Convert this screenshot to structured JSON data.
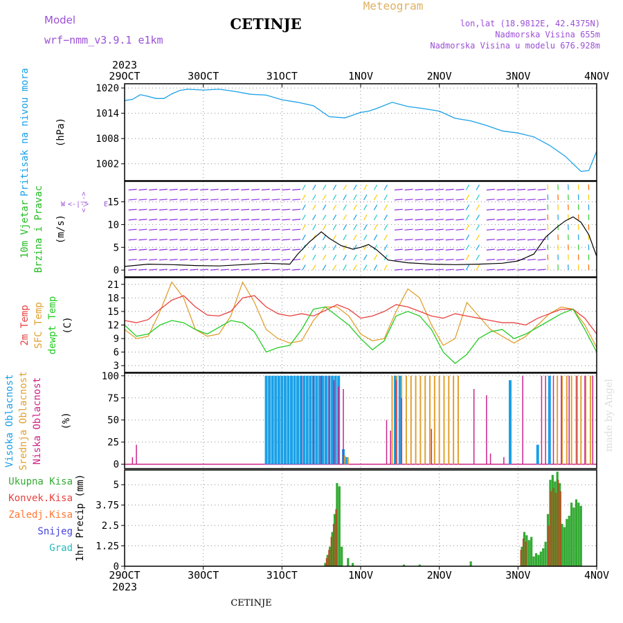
{
  "header": {
    "model_label": "Model",
    "model_name": "wrf−nmm_v3.9.1  e1km",
    "station": "CETINJE",
    "meteogram_label": "Meteogram",
    "lonlat": "lon,lat (18.9812E, 42.4375N)",
    "altitude": "Nadmorska Visina 655m",
    "model_altitude": "Nadmorska Visina u modelu 676.928m",
    "year": "2023",
    "footer_station": "CETINJE",
    "watermark": "made by Angel"
  },
  "colors": {
    "pressure": "#1aa0e6",
    "wind_title": "#22bb22",
    "wind_units": "#000000",
    "wind_arrows": "#8a2be2",
    "t2m": "#e84040",
    "sfc": "#e0a030",
    "dewpt": "#22cc22",
    "high_cloud": "#1aa0e6",
    "mid_cloud": "#e0a030",
    "low_cloud": "#cc2288",
    "total_precip": "#33aa33",
    "convective": "#e84040",
    "frozen": "#ff7733",
    "snow": "#4444dd",
    "hail": "#22bbbb",
    "title_purple": "#9b4fd6",
    "meteogram_orange": "#e0b060"
  },
  "chart_data": [
    {
      "type": "line",
      "title": "",
      "ylabel": "Pritisak na nivou mora",
      "yunit": "(hPa)",
      "yticks": [
        1002,
        1008,
        1014,
        1020
      ],
      "ylim": [
        998,
        1021
      ],
      "x_start": "29OCT 2023",
      "x_ticks": [
        "29OCT",
        "30OCT",
        "31OCT",
        "1NOV",
        "2NOV",
        "3NOV",
        "4NOV"
      ],
      "series": [
        {
          "name": "",
          "x": [
            0,
            0.1,
            0.2,
            0.3,
            0.4,
            0.5,
            0.6,
            0.7,
            0.8,
            0.9,
            1.0,
            1.2,
            1.4,
            1.6,
            1.8,
            2.0,
            2.2,
            2.4,
            2.6,
            2.8,
            3.0,
            3.1,
            3.2,
            3.4,
            3.6,
            3.8,
            4.0,
            4.2,
            4.4,
            4.6,
            4.8,
            5.0,
            5.2,
            5.4,
            5.6,
            5.7,
            5.8,
            5.9,
            6.0
          ],
          "y": [
            1017,
            1017.3,
            1018.4,
            1018,
            1017.5,
            1017.5,
            1018.6,
            1019.4,
            1019.7,
            1019.6,
            1019.5,
            1019.7,
            1019.2,
            1018.5,
            1018.3,
            1017.2,
            1016.6,
            1015.8,
            1013.2,
            1012.9,
            1014.2,
            1014.5,
            1015.1,
            1016.6,
            1015.6,
            1015.1,
            1014.5,
            1012.8,
            1012.2,
            1011.1,
            1009.8,
            1009.3,
            1008.4,
            1006.4,
            1003.8,
            1002,
            1000.2,
            1000.4,
            1005
          ]
        }
      ]
    },
    {
      "type": "line",
      "title": "",
      "ylabel": "10m Vjetar Brzina i Pravac",
      "yunit": "(m/s)",
      "yticks": [
        0,
        5,
        10,
        15
      ],
      "ylim": [
        -1.5,
        19.5
      ],
      "compass": "N / W <-|-> E / S",
      "series": [
        {
          "name": "",
          "x": [
            0,
            0.3,
            0.6,
            0.9,
            1.2,
            1.5,
            1.8,
            2.1,
            2.2,
            2.35,
            2.5,
            2.6,
            2.75,
            2.9,
            3.0,
            3.1,
            3.2,
            3.35,
            3.6,
            3.9,
            4.2,
            4.5,
            4.8,
            5.0,
            5.2,
            5.35,
            5.5,
            5.6,
            5.7,
            5.8,
            5.9,
            6.0
          ],
          "y": [
            0.8,
            1.3,
            1.2,
            1,
            0.9,
            1.2,
            1.5,
            1.3,
            3.5,
            6.2,
            8.4,
            7,
            5.4,
            4.6,
            5,
            5.6,
            4.5,
            2.2,
            1.6,
            1.3,
            1.2,
            1.3,
            1.5,
            2,
            3.5,
            7.2,
            9.5,
            10.8,
            11.7,
            10.5,
            7.8,
            3
          ]
        }
      ]
    },
    {
      "type": "line",
      "title": "",
      "ylabel": "2m Temp / SFC Temp / dewpt Temp",
      "yunit": "(C)",
      "yticks": [
        3,
        6,
        9,
        12,
        15,
        18,
        21
      ],
      "ylim": [
        1.5,
        22.5
      ],
      "series": [
        {
          "name": "2m Temp",
          "x": [
            0,
            0.15,
            0.3,
            0.45,
            0.6,
            0.75,
            0.9,
            1.05,
            1.2,
            1.35,
            1.5,
            1.65,
            1.8,
            1.95,
            2.1,
            2.25,
            2.4,
            2.55,
            2.7,
            2.85,
            3.0,
            3.15,
            3.3,
            3.45,
            3.6,
            3.75,
            3.9,
            4.05,
            4.2,
            4.35,
            4.5,
            4.65,
            4.8,
            4.95,
            5.1,
            5.25,
            5.4,
            5.55,
            5.7,
            5.85,
            6.0
          ],
          "y": [
            13,
            12.5,
            13.2,
            15.5,
            17.5,
            18.5,
            16,
            14.2,
            14,
            15,
            18,
            18.5,
            16,
            14.5,
            14,
            14.5,
            14,
            15.2,
            16.5,
            15.5,
            13.5,
            14,
            15,
            16.5,
            16,
            15,
            14,
            13.5,
            14.5,
            14,
            13.5,
            13,
            12.5,
            12.5,
            12,
            13.5,
            14.5,
            15.5,
            15.5,
            13.5,
            10
          ]
        },
        {
          "name": "SFC Temp",
          "x": [
            0,
            0.15,
            0.3,
            0.45,
            0.6,
            0.75,
            0.9,
            1.05,
            1.2,
            1.35,
            1.5,
            1.65,
            1.8,
            1.95,
            2.1,
            2.25,
            2.4,
            2.55,
            2.7,
            2.85,
            3.0,
            3.15,
            3.3,
            3.45,
            3.6,
            3.75,
            3.9,
            4.05,
            4.2,
            4.35,
            4.5,
            4.65,
            4.8,
            4.95,
            5.1,
            5.25,
            5.4,
            5.55,
            5.7,
            5.85,
            6.0
          ],
          "y": [
            11,
            9,
            9.5,
            15,
            21.5,
            18,
            11,
            9.5,
            10,
            14,
            21.5,
            17,
            11,
            9,
            8,
            8.5,
            13,
            16,
            16,
            14,
            10,
            8.5,
            9,
            15,
            20,
            18,
            12,
            7.5,
            9,
            17,
            14,
            11,
            9.5,
            8,
            9.5,
            12,
            14.5,
            16,
            15.5,
            12,
            7
          ]
        },
        {
          "name": "dewpt Temp",
          "x": [
            0,
            0.15,
            0.3,
            0.45,
            0.6,
            0.75,
            0.9,
            1.05,
            1.2,
            1.35,
            1.5,
            1.65,
            1.8,
            1.95,
            2.1,
            2.25,
            2.4,
            2.55,
            2.7,
            2.85,
            3.0,
            3.15,
            3.3,
            3.45,
            3.6,
            3.75,
            3.9,
            4.05,
            4.2,
            4.35,
            4.5,
            4.65,
            4.8,
            4.95,
            5.1,
            5.25,
            5.4,
            5.55,
            5.7,
            5.85,
            6.0
          ],
          "y": [
            12,
            9.5,
            10,
            12,
            13,
            12.5,
            11,
            10,
            11.5,
            13,
            12.5,
            10.5,
            6,
            7,
            7.5,
            11,
            15.5,
            16,
            14,
            12,
            9,
            6.5,
            8.5,
            14,
            15,
            14,
            11,
            6,
            3.5,
            5.5,
            9,
            10.5,
            11,
            9,
            10,
            11.5,
            13,
            14.5,
            15.5,
            11,
            6
          ]
        }
      ]
    },
    {
      "type": "bar",
      "title": "",
      "ylabel": "Visoka Oblacnost / Srednja Oblacnost / Niska Oblacnost",
      "yunit": "(%)",
      "yticks": [
        0,
        25,
        50,
        75,
        100
      ],
      "ylim": [
        -5,
        103
      ],
      "series": [
        {
          "name": "Visoka Oblacnost",
          "x": [
            1.8,
            1.84,
            1.88,
            1.92,
            1.96,
            2.0,
            2.04,
            2.08,
            2.12,
            2.16,
            2.2,
            2.24,
            2.28,
            2.32,
            2.36,
            2.4,
            2.44,
            2.48,
            2.52,
            2.56,
            2.6,
            2.64,
            2.68,
            2.72,
            2.78,
            2.82,
            3.44,
            3.5,
            4.9,
            5.25,
            5.4
          ],
          "y": [
            100,
            100,
            100,
            100,
            100,
            100,
            100,
            100,
            100,
            100,
            100,
            100,
            100,
            100,
            100,
            100,
            100,
            100,
            100,
            100,
            100,
            100,
            100,
            100,
            17,
            8,
            100,
            100,
            95,
            22,
            100
          ]
        },
        {
          "name": "Srednja Oblacnost",
          "x": [
            2.8,
            2.84,
            3.4,
            3.46,
            3.52,
            3.58,
            3.64,
            3.7,
            3.76,
            3.82,
            3.88,
            3.94,
            4.0,
            4.06,
            4.12,
            4.18,
            4.24,
            5.5,
            5.56,
            5.62,
            5.68,
            5.74,
            5.8,
            5.86,
            5.92
          ],
          "y": [
            10,
            8,
            100,
            100,
            100,
            100,
            100,
            100,
            100,
            100,
            100,
            100,
            100,
            100,
            100,
            100,
            100,
            100,
            100,
            100,
            100,
            100,
            100,
            100,
            100
          ]
        },
        {
          "name": "Niska Oblacnost",
          "x": [
            0.1,
            0.15,
            2.25,
            2.4,
            2.5,
            2.6,
            2.66,
            2.72,
            2.78,
            3.33,
            3.38,
            3.45,
            3.52,
            3.9,
            4.44,
            4.6,
            4.65,
            4.82,
            5.06,
            5.3,
            5.35,
            5.45,
            5.55,
            5.65,
            5.75,
            5.85,
            5.95
          ],
          "y": [
            8,
            22,
            100,
            100,
            100,
            100,
            95,
            88,
            85,
            50,
            38,
            95,
            75,
            40,
            85,
            78,
            12,
            8,
            100,
            100,
            100,
            100,
            100,
            100,
            100,
            100,
            100
          ]
        }
      ]
    },
    {
      "type": "bar",
      "title": "",
      "ylabel": "1hr Precip",
      "yunit": "(mm)",
      "yticks": [
        0,
        1.25,
        2.5,
        3.75,
        5
      ],
      "ylim": [
        0,
        5.9
      ],
      "legend": [
        "Ukupna Kisa",
        "Konvek.Kisa",
        "Zaledj.Kisa",
        "Snijeg",
        "Grad"
      ],
      "x_ticks": [
        "29OCT",
        "30OCT",
        "31OCT",
        "1NOV",
        "2NOV",
        "3NOV",
        "4NOV"
      ],
      "x_end": "2023",
      "series": [
        {
          "name": "Ukupna Kisa",
          "x": [
            2.55,
            2.58,
            2.61,
            2.64,
            2.67,
            2.7,
            2.73,
            2.76,
            2.84,
            2.9,
            3.55,
            3.75,
            4.4,
            5.05,
            5.08,
            5.11,
            5.14,
            5.17,
            5.2,
            5.23,
            5.26,
            5.29,
            5.32,
            5.35,
            5.38,
            5.41,
            5.44,
            5.47,
            5.5,
            5.53,
            5.56,
            5.59,
            5.62,
            5.65,
            5.68,
            5.71,
            5.74,
            5.77,
            5.8
          ],
          "y": [
            0.2,
            0.7,
            1.2,
            2.1,
            3.2,
            5.1,
            4.9,
            1.2,
            0.5,
            0.2,
            0.1,
            0.1,
            0.3,
            1.2,
            2.1,
            1.9,
            1.6,
            1.8,
            0.6,
            0.8,
            0.7,
            0.9,
            1.1,
            1.5,
            3.2,
            5.3,
            5.6,
            5.2,
            5.8,
            5.1,
            2.6,
            2.4,
            2.9,
            3.1,
            3.9,
            3.6,
            4.1,
            3.9,
            3.7
          ]
        },
        {
          "name": "Konvek.Kisa",
          "x": [
            2.58,
            2.61,
            2.64,
            2.67,
            2.7,
            5.05,
            5.08,
            5.11,
            5.4,
            5.43,
            5.46,
            5.49,
            5.52,
            5.55
          ],
          "y": [
            0.5,
            1.0,
            1.8,
            2.6,
            3.5,
            1.0,
            1.7,
            1.5,
            2.5,
            4.6,
            4.8,
            4.5,
            5.3,
            4.6
          ]
        }
      ]
    }
  ]
}
